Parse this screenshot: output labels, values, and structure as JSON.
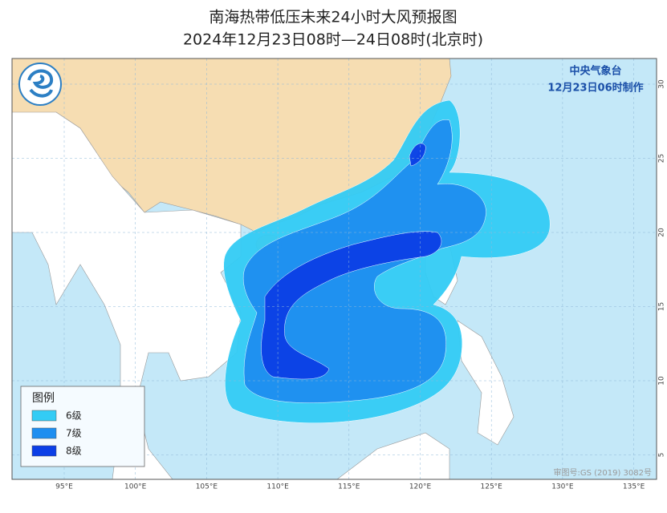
{
  "header": {
    "title": "南海热带低压未来24小时大风预报图",
    "subtitle": "2024年12月23日08时—24日08时(北京时)"
  },
  "agency": {
    "name": "中央气象台",
    "issued": "12月23日06时制作"
  },
  "legend": {
    "title": "图例",
    "items": [
      {
        "label": "6级",
        "color": "#33ccf5"
      },
      {
        "label": "7级",
        "color": "#1e8ef0"
      },
      {
        "label": "8级",
        "color": "#0c3fe6"
      }
    ]
  },
  "map": {
    "longitude_labels": [
      "95°E",
      "100°E",
      "105°E",
      "110°E",
      "115°E",
      "120°E",
      "125°E",
      "130°E",
      "135°E"
    ],
    "latitude_labels": [
      "30",
      "25",
      "20",
      "15",
      "10",
      "5"
    ],
    "approval": "审图号:GS (2019) 3082号"
  }
}
